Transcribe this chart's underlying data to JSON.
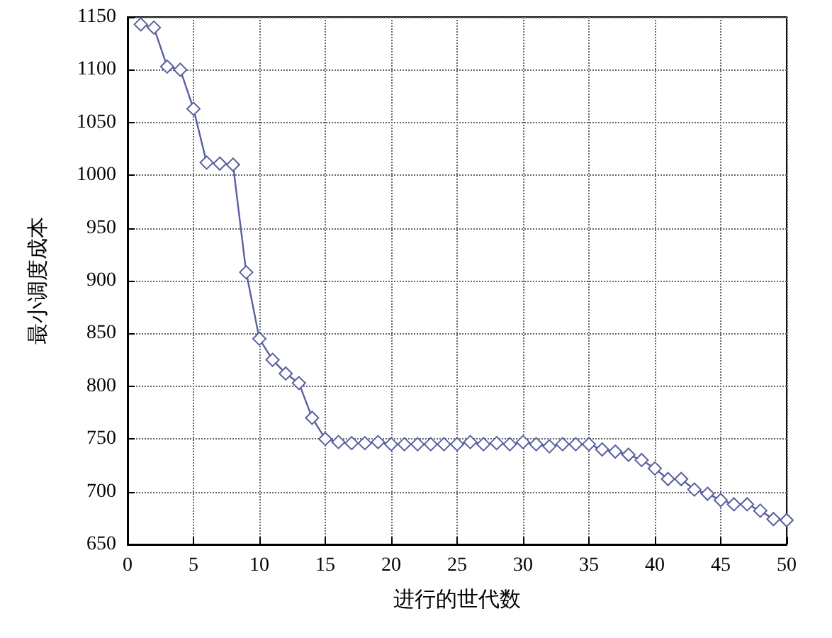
{
  "chart_data": {
    "type": "line",
    "xlabel": "进行的世代数",
    "ylabel": "最小调度成本",
    "x": [
      1,
      2,
      3,
      4,
      5,
      6,
      7,
      8,
      9,
      10,
      11,
      12,
      13,
      14,
      15,
      16,
      17,
      18,
      19,
      20,
      21,
      22,
      23,
      24,
      25,
      26,
      27,
      28,
      29,
      30,
      31,
      32,
      33,
      34,
      35,
      36,
      37,
      38,
      39,
      40,
      41,
      42,
      43,
      44,
      45,
      46,
      47,
      48,
      49,
      50
    ],
    "series": [
      {
        "color": "#5a5fa0",
        "values": [
          1143,
          1140,
          1103,
          1100,
          1063,
          1012,
          1011,
          1010,
          908,
          845,
          825,
          812,
          803,
          770,
          750,
          747,
          746,
          746,
          747,
          745,
          745,
          745,
          745,
          745,
          745,
          747,
          745,
          746,
          745,
          747,
          745,
          743,
          745,
          745,
          745,
          740,
          738,
          735,
          730,
          722,
          712,
          712,
          702,
          698,
          692,
          688,
          688,
          682,
          674,
          673
        ]
      }
    ],
    "xlim": [
      0,
      50
    ],
    "xticks": [
      0,
      5,
      10,
      15,
      20,
      25,
      30,
      35,
      40,
      45,
      50
    ],
    "ylim": [
      650,
      1150
    ],
    "yticks": [
      650,
      700,
      750,
      800,
      850,
      900,
      950,
      1000,
      1050,
      1100,
      1150
    ],
    "grid": true,
    "marker": "diamond",
    "line_style": "solid"
  }
}
